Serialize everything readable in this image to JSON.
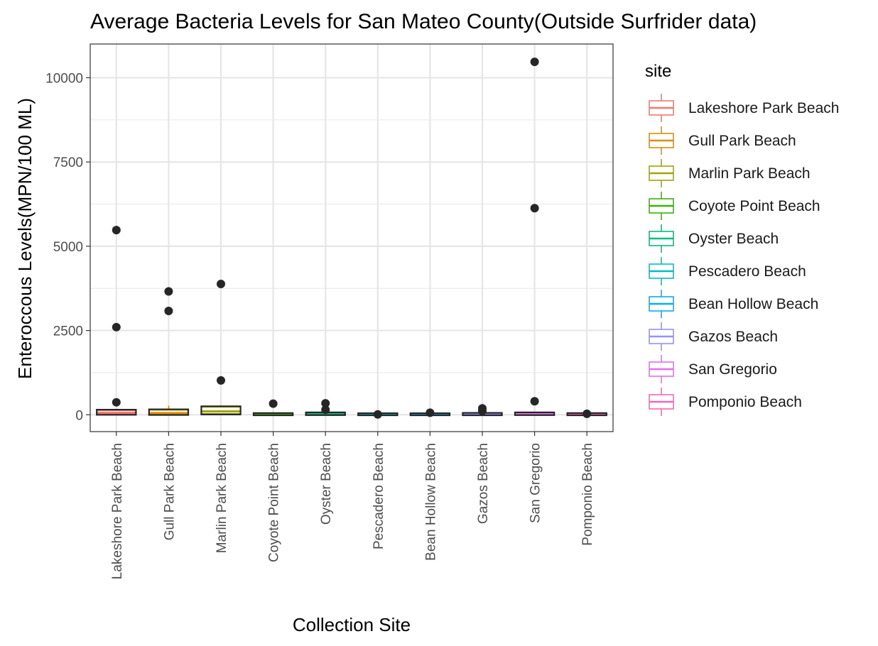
{
  "chart_data": {
    "type": "box",
    "title": "Average Bacteria Levels for San Mateo County(Outside Surfrider data)",
    "xlabel": "Collection Site",
    "ylabel": "Enteroccous Levels(MPN/100 ML)",
    "ylim": [
      -500,
      11000
    ],
    "yticks": [
      0,
      2500,
      5000,
      7500,
      10000
    ],
    "grid": true,
    "legend": {
      "title": "site",
      "placement": "right"
    },
    "categories": [
      "Lakeshore Park Beach",
      "Gull Park Beach",
      "Marlin Park Beach",
      "Coyote Point Beach",
      "Oyster Beach",
      "Pescadero Beach",
      "Bean Hollow Beach",
      "Gazos Beach",
      "San Gregorio",
      "Pomponio Beach"
    ],
    "colors": [
      "#F8766D",
      "#D89000",
      "#A3A500",
      "#39B600",
      "#00BF7D",
      "#00BFC4",
      "#00B0F6",
      "#9590FF",
      "#E76BF3",
      "#FF62BC"
    ],
    "series": [
      {
        "name": "Lakeshore Park Beach",
        "box": {
          "min": 0,
          "q1": 20,
          "median": 60,
          "q3": 130,
          "max": 160
        },
        "outliers": [
          5480,
          2600,
          370
        ]
      },
      {
        "name": "Gull Park Beach",
        "box": {
          "min": 0,
          "q1": 15,
          "median": 50,
          "q3": 140,
          "max": 270
        },
        "outliers": [
          3660,
          3080
        ]
      },
      {
        "name": "Marlin Park Beach",
        "box": {
          "min": 0,
          "q1": 30,
          "median": 100,
          "q3": 230,
          "max": 280
        },
        "outliers": [
          3880,
          1020
        ]
      },
      {
        "name": "Coyote Point Beach",
        "box": {
          "min": 0,
          "q1": 5,
          "median": 15,
          "q3": 30,
          "max": 60
        },
        "outliers": [
          330
        ]
      },
      {
        "name": "Oyster Beach",
        "box": {
          "min": 0,
          "q1": 10,
          "median": 25,
          "q3": 50,
          "max": 80
        },
        "outliers": [
          340,
          150
        ]
      },
      {
        "name": "Pescadero Beach",
        "box": {
          "min": 0,
          "q1": 5,
          "median": 10,
          "q3": 25,
          "max": 40
        },
        "outliers": [
          10
        ]
      },
      {
        "name": "Bean Hollow Beach",
        "box": {
          "min": 0,
          "q1": 5,
          "median": 10,
          "q3": 25,
          "max": 45
        },
        "outliers": [
          60
        ]
      },
      {
        "name": "Gazos Beach",
        "box": {
          "min": 0,
          "q1": 5,
          "median": 15,
          "q3": 35,
          "max": 60
        },
        "outliers": [
          190,
          110
        ]
      },
      {
        "name": "San Gregorio",
        "box": {
          "min": 0,
          "q1": 10,
          "median": 25,
          "q3": 50,
          "max": 90
        },
        "outliers": [
          10470,
          6130,
          400
        ]
      },
      {
        "name": "Pomponio Beach",
        "box": {
          "min": 0,
          "q1": 5,
          "median": 15,
          "q3": 30,
          "max": 45
        },
        "outliers": [
          30
        ]
      }
    ]
  }
}
